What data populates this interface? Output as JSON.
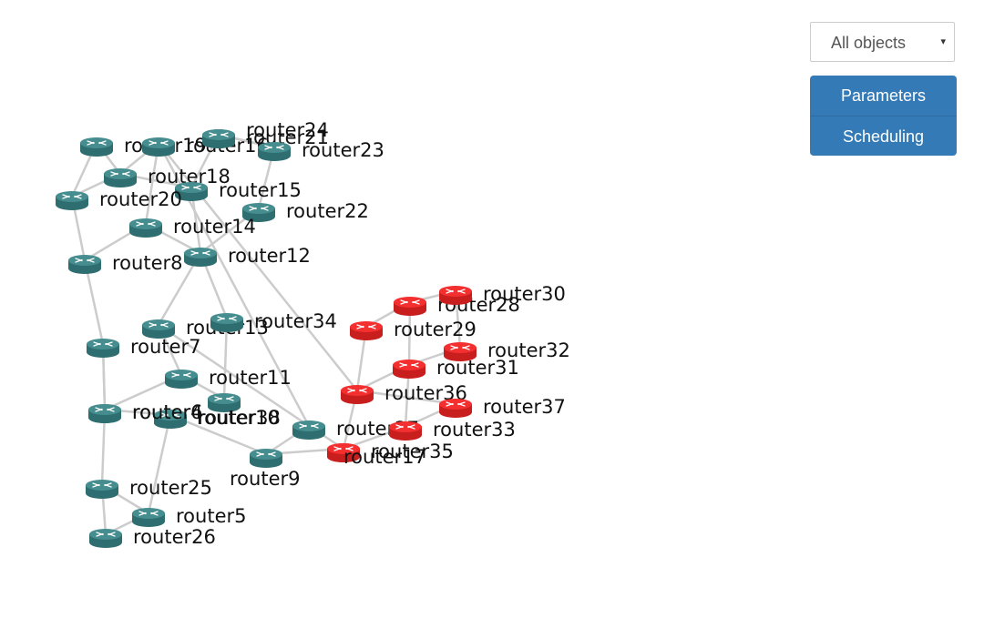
{
  "filter": {
    "selected": "All objects",
    "arrow": "▾"
  },
  "actions": {
    "parameters": "Parameters",
    "scheduling": "Scheduling"
  },
  "colors": {
    "normal": "#468d8f",
    "normal_dark": "#2f6e70",
    "alert": "#f42f2f",
    "alert_dark": "#c81e1e",
    "link": "#cccccc"
  },
  "nodes": [
    {
      "id": "router19",
      "label": "router19",
      "status": "normal"
    },
    {
      "id": "router16",
      "label": "router16",
      "status": "normal"
    },
    {
      "id": "router21",
      "label": "router21",
      "status": "normal"
    },
    {
      "id": "router24",
      "label": "router24",
      "status": "normal"
    },
    {
      "id": "router23",
      "label": "router23",
      "status": "normal"
    },
    {
      "id": "router18",
      "label": "router18",
      "status": "normal"
    },
    {
      "id": "router15",
      "label": "router15",
      "status": "normal"
    },
    {
      "id": "router20",
      "label": "router20",
      "status": "normal"
    },
    {
      "id": "router22",
      "label": "router22",
      "status": "normal"
    },
    {
      "id": "router14",
      "label": "router14",
      "status": "normal"
    },
    {
      "id": "router12",
      "label": "router12",
      "status": "normal"
    },
    {
      "id": "router8",
      "label": "router8",
      "status": "normal"
    },
    {
      "id": "router13",
      "label": "router13",
      "status": "normal"
    },
    {
      "id": "router34",
      "label": "router34",
      "status": "normal"
    },
    {
      "id": "router7",
      "label": "router7",
      "status": "normal"
    },
    {
      "id": "router11",
      "label": "router11",
      "status": "normal"
    },
    {
      "id": "router27",
      "label": "router27",
      "status": "normal"
    },
    {
      "id": "router10",
      "label": "router10",
      "status": "normal"
    },
    {
      "id": "router6",
      "label": "router6",
      "status": "normal"
    },
    {
      "id": "router38",
      "label": "router38",
      "status": "normal"
    },
    {
      "id": "router9",
      "label": "router9",
      "status": "normal"
    },
    {
      "id": "router25",
      "label": "router25",
      "status": "normal"
    },
    {
      "id": "router4",
      "label": "router4",
      "status": "normal"
    },
    {
      "id": "router5",
      "label": "router5",
      "status": "normal"
    },
    {
      "id": "router26",
      "label": "router26",
      "status": "normal"
    },
    {
      "id": "router29",
      "label": "router29",
      "status": "alert"
    },
    {
      "id": "router28",
      "label": "router28",
      "status": "alert"
    },
    {
      "id": "router30",
      "label": "router30",
      "status": "alert"
    },
    {
      "id": "router32",
      "label": "router32",
      "status": "alert"
    },
    {
      "id": "router31",
      "label": "router31",
      "status": "alert"
    },
    {
      "id": "router36",
      "label": "router36",
      "status": "alert"
    },
    {
      "id": "router37",
      "label": "router37",
      "status": "alert"
    },
    {
      "id": "router33",
      "label": "router33",
      "status": "alert"
    },
    {
      "id": "router35",
      "label": "router35",
      "status": "alert"
    },
    {
      "id": "router17",
      "label": "router17",
      "status": "alert"
    }
  ],
  "links": [
    [
      "router19",
      "router20"
    ],
    [
      "router19",
      "router18"
    ],
    [
      "router16",
      "router18"
    ],
    [
      "router21",
      "router15"
    ],
    [
      "router21",
      "router23"
    ],
    [
      "router24",
      "router23"
    ],
    [
      "router16",
      "router14"
    ],
    [
      "router18",
      "router20"
    ],
    [
      "router18",
      "router15"
    ],
    [
      "router15",
      "router12"
    ],
    [
      "router23",
      "router22"
    ],
    [
      "router20",
      "router8"
    ],
    [
      "router14",
      "router8"
    ],
    [
      "router14",
      "router12"
    ],
    [
      "router22",
      "router12"
    ],
    [
      "router12",
      "router13"
    ],
    [
      "router12",
      "router34"
    ],
    [
      "router8",
      "router7"
    ],
    [
      "router13",
      "router11"
    ],
    [
      "router34",
      "router10"
    ],
    [
      "router7",
      "router6"
    ],
    [
      "router7",
      "router4"
    ],
    [
      "router13",
      "router27"
    ],
    [
      "router11",
      "router10"
    ],
    [
      "router11",
      "router6"
    ],
    [
      "router4",
      "router25"
    ],
    [
      "router6",
      "router38"
    ],
    [
      "router38",
      "router9"
    ],
    [
      "router9",
      "router27"
    ],
    [
      "router27",
      "router16"
    ],
    [
      "router38",
      "router5"
    ],
    [
      "router25",
      "router5"
    ],
    [
      "router25",
      "router26"
    ],
    [
      "router5",
      "router26"
    ],
    [
      "router16",
      "router36"
    ],
    [
      "router29",
      "router36"
    ],
    [
      "router29",
      "router28"
    ],
    [
      "router28",
      "router30"
    ],
    [
      "router28",
      "router31"
    ],
    [
      "router30",
      "router32"
    ],
    [
      "router31",
      "router36"
    ],
    [
      "router31",
      "router32"
    ],
    [
      "router31",
      "router33"
    ],
    [
      "router36",
      "router17"
    ],
    [
      "router36",
      "router37"
    ],
    [
      "router33",
      "router37"
    ],
    [
      "router33",
      "router35"
    ],
    [
      "router35",
      "router17"
    ],
    [
      "router17",
      "router9"
    ],
    [
      "router27",
      "router35"
    ]
  ]
}
